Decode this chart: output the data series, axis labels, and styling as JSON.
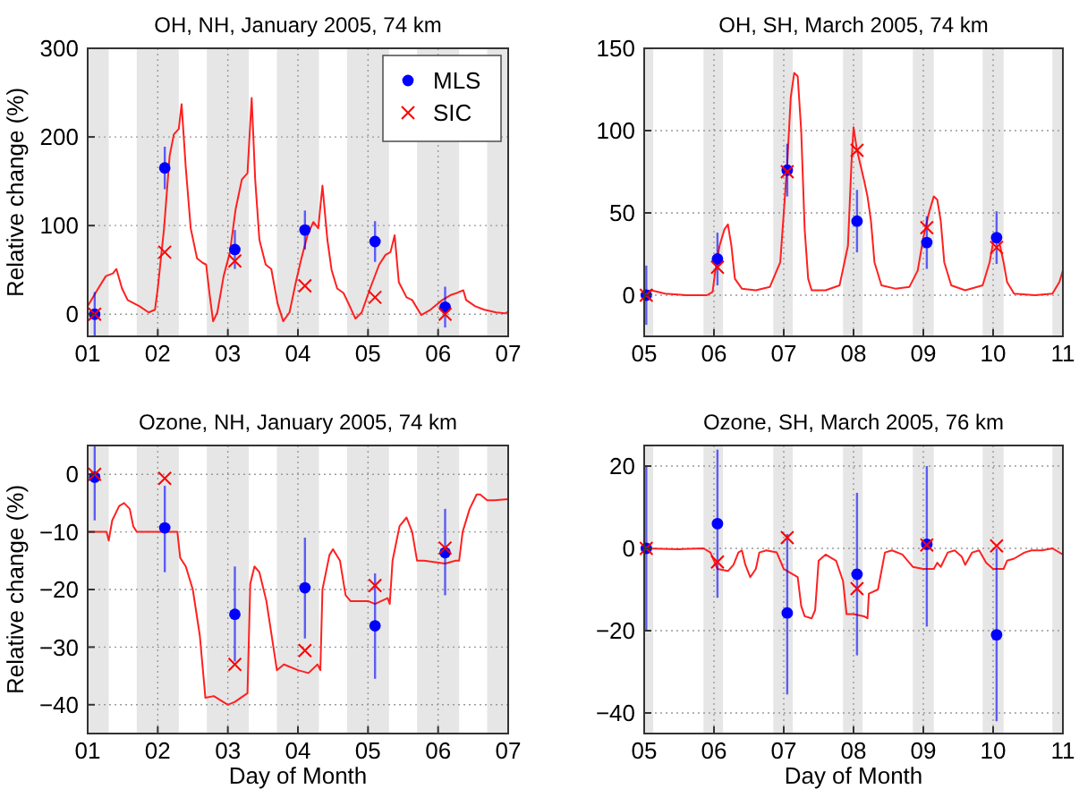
{
  "chart_data": [
    {
      "type": "line",
      "title": "OH, NH, January 2005, 74 km",
      "ylabel": "Relative change (%)",
      "xlim": [
        1,
        7
      ],
      "ylim": [
        -25,
        300
      ],
      "xticks": [
        {
          "value": 1,
          "label": "01"
        },
        {
          "value": 2,
          "label": "02"
        },
        {
          "value": 3,
          "label": "03"
        },
        {
          "value": 4,
          "label": "04"
        },
        {
          "value": 5,
          "label": "05"
        },
        {
          "value": 6,
          "label": "06"
        },
        {
          "value": 7,
          "label": "07"
        }
      ],
      "yticks": [
        0,
        100,
        200,
        300
      ],
      "grid": true,
      "legend": "top right",
      "bands": [
        {
          "axis": "x",
          "from": 1,
          "to": 1.3,
          "color": "#e6e6e6"
        },
        {
          "axis": "x",
          "from": 1.7,
          "to": 2.3,
          "color": "#e6e6e6"
        },
        {
          "axis": "x",
          "from": 2.7,
          "to": 3.3,
          "color": "#e6e6e6"
        },
        {
          "axis": "x",
          "from": 3.7,
          "to": 4.3,
          "color": "#e6e6e6"
        },
        {
          "axis": "x",
          "from": 4.7,
          "to": 5.3,
          "color": "#e6e6e6"
        },
        {
          "axis": "x",
          "from": 5.7,
          "to": 6.3,
          "color": "#e6e6e6"
        },
        {
          "axis": "x",
          "from": 6.7,
          "to": 7,
          "color": "#e6e6e6"
        }
      ],
      "series": [
        {
          "type": "line",
          "color": "#ff2020",
          "marker": "none",
          "x": [
            1.0,
            1.15,
            1.26,
            1.36,
            1.41,
            1.49,
            1.57,
            1.74,
            1.87,
            1.96,
            2.0,
            2.09,
            2.17,
            2.23,
            2.3,
            2.34,
            2.4,
            2.47,
            2.56,
            2.64,
            2.69,
            2.74,
            2.79,
            2.85,
            2.94,
            3.03,
            3.11,
            3.2,
            3.28,
            3.34,
            3.39,
            3.45,
            3.54,
            3.62,
            3.71,
            3.79,
            3.88,
            3.97,
            4.05,
            4.14,
            4.22,
            4.29,
            4.35,
            4.42,
            4.48,
            4.56,
            4.65,
            4.74,
            4.82,
            4.91,
            5.03,
            5.16,
            5.25,
            5.32,
            5.38,
            5.44,
            5.55,
            5.63,
            5.76,
            5.89,
            6.06,
            6.19,
            6.27,
            6.36,
            6.4,
            6.53,
            6.66,
            6.83,
            6.96,
            7.0
          ],
          "values": [
            9,
            29,
            43,
            46,
            51,
            29,
            16,
            9,
            2,
            5,
            29,
            97,
            179,
            203,
            209,
            237,
            165,
            97,
            63,
            58,
            56,
            22,
            -8,
            2,
            43,
            70,
            118,
            152,
            159,
            244,
            152,
            84,
            56,
            51,
            12,
            -8,
            2,
            36,
            63,
            90,
            104,
            97,
            145,
            84,
            50,
            29,
            24,
            9,
            -5,
            2,
            29,
            56,
            67,
            70,
            89,
            36,
            19,
            16,
            -1,
            5,
            16,
            22,
            24,
            27,
            16,
            9,
            5,
            2,
            1,
            3
          ]
        },
        {
          "type": "scatter",
          "name": "MLS",
          "color": "#0000ff",
          "marker": "circle",
          "x": [
            1.1,
            2.1,
            3.1,
            4.1,
            5.1,
            6.1
          ],
          "values": [
            0,
            165,
            73,
            95,
            82,
            8
          ],
          "errors": [
            [
              -25,
              25
            ],
            [
              141,
              189
            ],
            [
              51,
              95
            ],
            [
              73,
              117
            ],
            [
              59,
              105
            ],
            [
              -15,
              31
            ]
          ]
        },
        {
          "type": "scatter",
          "name": "SIC",
          "color": "#ff0000",
          "marker": "cross",
          "x": [
            1.1,
            2.1,
            3.1,
            4.1,
            5.1,
            6.1
          ],
          "values": [
            0,
            70,
            60,
            32,
            19,
            0
          ]
        }
      ]
    },
    {
      "type": "line",
      "title": "OH, SH, March 2005, 74 km",
      "xlim": [
        5,
        11
      ],
      "ylim": [
        -25,
        150
      ],
      "xticks": [
        {
          "value": 5,
          "label": "05"
        },
        {
          "value": 6,
          "label": "06"
        },
        {
          "value": 7,
          "label": "07"
        },
        {
          "value": 8,
          "label": "08"
        },
        {
          "value": 9,
          "label": "09"
        },
        {
          "value": 10,
          "label": "10"
        },
        11
      ],
      "yticks": [
        0,
        50,
        100,
        150
      ],
      "grid": true,
      "bands": [
        {
          "axis": "x",
          "from": 5,
          "to": 5.13,
          "color": "#e6e6e6"
        },
        {
          "axis": "x",
          "from": 5.85,
          "to": 6.13,
          "color": "#e6e6e6"
        },
        {
          "axis": "x",
          "from": 6.85,
          "to": 7.13,
          "color": "#e6e6e6"
        },
        {
          "axis": "x",
          "from": 7.85,
          "to": 8.13,
          "color": "#e6e6e6"
        },
        {
          "axis": "x",
          "from": 8.85,
          "to": 9.15,
          "color": "#e6e6e6"
        },
        {
          "axis": "x",
          "from": 9.85,
          "to": 10.15,
          "color": "#e6e6e6"
        },
        {
          "axis": "x",
          "from": 10.85,
          "to": 11,
          "color": "#e6e6e6"
        }
      ],
      "series": [
        {
          "type": "line",
          "color": "#ff2020",
          "marker": "none",
          "x": [
            5.0,
            5.1,
            5.3,
            5.6,
            5.9,
            5.98,
            6.02,
            6.08,
            6.15,
            6.2,
            6.25,
            6.3,
            6.4,
            6.6,
            6.8,
            6.95,
            7.0,
            7.05,
            7.1,
            7.15,
            7.2,
            7.25,
            7.3,
            7.35,
            7.4,
            7.6,
            7.8,
            7.92,
            7.97,
            8.0,
            8.05,
            8.15,
            8.2,
            8.25,
            8.3,
            8.4,
            8.6,
            8.8,
            8.92,
            9.0,
            9.08,
            9.15,
            9.2,
            9.25,
            9.3,
            9.4,
            9.6,
            9.85,
            9.95,
            10.0,
            10.05,
            10.1,
            10.15,
            10.2,
            10.3,
            10.6,
            10.85,
            10.95,
            11.0
          ],
          "values": [
            2,
            3,
            1,
            0,
            0,
            2,
            15,
            30,
            40,
            43,
            30,
            10,
            4,
            3,
            5,
            20,
            50,
            80,
            120,
            135,
            133,
            100,
            40,
            10,
            3,
            3,
            6,
            30,
            80,
            102,
            88,
            70,
            60,
            45,
            20,
            6,
            4,
            5,
            15,
            35,
            50,
            60,
            58,
            45,
            20,
            6,
            3,
            6,
            20,
            32,
            35,
            30,
            20,
            8,
            1,
            0,
            1,
            8,
            15
          ]
        },
        {
          "type": "scatter",
          "color": "#0000ff",
          "marker": "circle",
          "x": [
            5.03,
            6.05,
            7.05,
            8.05,
            9.05,
            10.05
          ],
          "values": [
            0,
            22,
            76,
            45,
            32,
            35
          ],
          "errors": [
            [
              -18,
              18
            ],
            [
              6,
              38
            ],
            [
              60,
              92
            ],
            [
              26,
              64
            ],
            [
              16,
              48
            ],
            [
              19,
              51
            ]
          ]
        },
        {
          "type": "scatter",
          "color": "#ff0000",
          "marker": "cross",
          "x": [
            5.03,
            6.05,
            7.05,
            8.05,
            9.05,
            10.05
          ],
          "values": [
            0,
            17,
            75,
            88,
            41,
            29
          ]
        }
      ]
    },
    {
      "type": "line",
      "title": "Ozone, NH, January 2005, 74 km",
      "xlabel": "Day of Month",
      "ylabel": "Relative change (%)",
      "xlim": [
        1,
        7
      ],
      "ylim": [
        -45,
        5
      ],
      "xticks": [
        {
          "value": 1,
          "label": "01"
        },
        {
          "value": 2,
          "label": "02"
        },
        {
          "value": 3,
          "label": "03"
        },
        {
          "value": 4,
          "label": "04"
        },
        {
          "value": 5,
          "label": "05"
        },
        {
          "value": 6,
          "label": "06"
        },
        {
          "value": 7,
          "label": "07"
        }
      ],
      "yticks": [
        -40,
        -30,
        -20,
        -10,
        0
      ],
      "grid": true,
      "bands": [
        {
          "axis": "x",
          "from": 1,
          "to": 1.3,
          "color": "#e6e6e6"
        },
        {
          "axis": "x",
          "from": 1.7,
          "to": 2.3,
          "color": "#e6e6e6"
        },
        {
          "axis": "x",
          "from": 2.7,
          "to": 3.3,
          "color": "#e6e6e6"
        },
        {
          "axis": "x",
          "from": 3.7,
          "to": 4.3,
          "color": "#e6e6e6"
        },
        {
          "axis": "x",
          "from": 4.7,
          "to": 5.3,
          "color": "#e6e6e6"
        },
        {
          "axis": "x",
          "from": 5.7,
          "to": 6.3,
          "color": "#e6e6e6"
        },
        {
          "axis": "x",
          "from": 6.7,
          "to": 7,
          "color": "#e6e6e6"
        }
      ],
      "series": [
        {
          "type": "line",
          "color": "#ff2020",
          "marker": "none",
          "x": [
            1.0,
            1.2,
            1.27,
            1.3,
            1.35,
            1.45,
            1.52,
            1.6,
            1.65,
            1.7,
            2.0,
            2.2,
            2.28,
            2.32,
            2.4,
            2.5,
            2.6,
            2.68,
            2.8,
            3.0,
            3.1,
            3.28,
            3.32,
            3.38,
            3.45,
            3.55,
            3.65,
            3.7,
            3.8,
            4.0,
            4.15,
            4.28,
            4.32,
            4.35,
            4.45,
            4.5,
            4.6,
            4.68,
            4.75,
            5.0,
            5.1,
            5.28,
            5.31,
            5.35,
            5.45,
            5.55,
            5.63,
            5.7,
            5.8,
            6.1,
            6.25,
            6.3,
            6.35,
            6.45,
            6.55,
            6.6,
            6.7,
            6.8,
            7.0
          ],
          "values": [
            -10,
            -10,
            -10,
            -11.5,
            -8,
            -5.5,
            -5,
            -6,
            -9,
            -10,
            -10,
            -10,
            -10,
            -14.5,
            -16,
            -20,
            -28,
            -38.8,
            -38.5,
            -40,
            -39.5,
            -38,
            -19,
            -16,
            -17,
            -22,
            -30,
            -34,
            -33,
            -34,
            -34.5,
            -33,
            -34,
            -20,
            -14,
            -13,
            -15,
            -21,
            -22,
            -22,
            -22.5,
            -21.5,
            -22.5,
            -15,
            -9,
            -7.5,
            -10,
            -15,
            -15,
            -15.5,
            -15,
            -15,
            -10,
            -6,
            -3.5,
            -3.5,
            -4.5,
            -4.5,
            -4.3
          ]
        },
        {
          "type": "scatter",
          "color": "#0000ff",
          "marker": "circle",
          "x": [
            1.1,
            2.1,
            3.1,
            4.1,
            5.1,
            6.1
          ],
          "values": [
            -0.5,
            -9.3,
            -24.3,
            -19.7,
            -26.3,
            -13.6
          ],
          "errors": [
            [
              -8,
              5
            ],
            [
              -17,
              -2
            ],
            [
              -32.5,
              -16
            ],
            [
              -28.5,
              -11
            ],
            [
              -35.5,
              -17.2
            ],
            [
              -21,
              -6
            ]
          ]
        },
        {
          "type": "scatter",
          "color": "#ff0000",
          "marker": "cross",
          "x": [
            1.1,
            2.1,
            3.1,
            4.1,
            5.1,
            6.1
          ],
          "values": [
            0,
            -0.7,
            -33,
            -30.6,
            -19.3,
            -12.8
          ]
        }
      ]
    },
    {
      "type": "line",
      "title": "Ozone, SH, March 2005, 76 km",
      "xlabel": "Day of Month",
      "xlim": [
        5,
        11
      ],
      "ylim": [
        -45,
        25
      ],
      "xticks": [
        {
          "value": 5,
          "label": "05"
        },
        {
          "value": 6,
          "label": "06"
        },
        {
          "value": 7,
          "label": "07"
        },
        {
          "value": 8,
          "label": "08"
        },
        {
          "value": 9,
          "label": "09"
        },
        {
          "value": 10,
          "label": "10"
        },
        11
      ],
      "yticks": [
        -40,
        -20,
        0,
        20
      ],
      "grid": true,
      "bands": [
        {
          "axis": "x",
          "from": 5,
          "to": 5.13,
          "color": "#e6e6e6"
        },
        {
          "axis": "x",
          "from": 5.85,
          "to": 6.13,
          "color": "#e6e6e6"
        },
        {
          "axis": "x",
          "from": 6.85,
          "to": 7.13,
          "color": "#e6e6e6"
        },
        {
          "axis": "x",
          "from": 7.85,
          "to": 8.13,
          "color": "#e6e6e6"
        },
        {
          "axis": "x",
          "from": 8.85,
          "to": 9.15,
          "color": "#e6e6e6"
        },
        {
          "axis": "x",
          "from": 9.85,
          "to": 10.15,
          "color": "#e6e6e6"
        },
        {
          "axis": "x",
          "from": 10.85,
          "to": 11,
          "color": "#e6e6e6"
        }
      ],
      "series": [
        {
          "type": "line",
          "color": "#ff2020",
          "marker": "none",
          "x": [
            5.0,
            5.5,
            5.85,
            5.95,
            6.05,
            6.2,
            6.28,
            6.35,
            6.4,
            6.45,
            6.52,
            6.6,
            6.65,
            6.75,
            6.9,
            7.0,
            7.1,
            7.2,
            7.25,
            7.3,
            7.4,
            7.45,
            7.5,
            7.6,
            7.75,
            7.85,
            7.9,
            8.0,
            8.15,
            8.2,
            8.22,
            8.35,
            8.45,
            8.55,
            8.7,
            8.85,
            9.0,
            9.15,
            9.2,
            9.25,
            9.35,
            9.45,
            9.55,
            9.6,
            9.7,
            9.8,
            9.9,
            10.0,
            10.15,
            10.2,
            10.3,
            10.45,
            10.55,
            10.7,
            10.85,
            11.0
          ],
          "values": [
            0,
            -0.2,
            0,
            -1,
            -5,
            -5.5,
            -4,
            -1,
            -0.5,
            -4,
            -7,
            -5,
            -1,
            -0.5,
            -1,
            -5,
            -6,
            -7,
            -14,
            -16.5,
            -17,
            -15,
            -3,
            -1.5,
            -3,
            -8,
            -16,
            -16,
            -16.5,
            -17,
            -11,
            -10,
            -1,
            -0.5,
            -1.5,
            -4.5,
            -5,
            -5,
            -3.5,
            -4.5,
            -1,
            -0.5,
            -2,
            -4,
            -1,
            -0.5,
            -3.5,
            -5,
            -5,
            -3,
            -2.5,
            -1,
            -0.5,
            -0.5,
            0,
            -1.5
          ]
        },
        {
          "type": "scatter",
          "color": "#0000ff",
          "marker": "circle",
          "x": [
            5.03,
            6.05,
            7.05,
            8.05,
            9.05,
            10.05
          ],
          "values": [
            0,
            6,
            -15.7,
            -6.3,
            1,
            -21
          ],
          "errors": [
            [
              -20,
              20
            ],
            [
              -12,
              24
            ],
            [
              -35.5,
              3.5
            ],
            [
              -26,
              13.5
            ],
            [
              -19,
              20
            ],
            [
              -42,
              0
            ]
          ]
        },
        {
          "type": "scatter",
          "color": "#ff0000",
          "marker": "cross",
          "x": [
            5.03,
            6.05,
            7.05,
            8.05,
            9.05,
            10.05
          ],
          "values": [
            0,
            -3.3,
            2.6,
            -9.8,
            0.8,
            0.6
          ]
        }
      ]
    }
  ]
}
